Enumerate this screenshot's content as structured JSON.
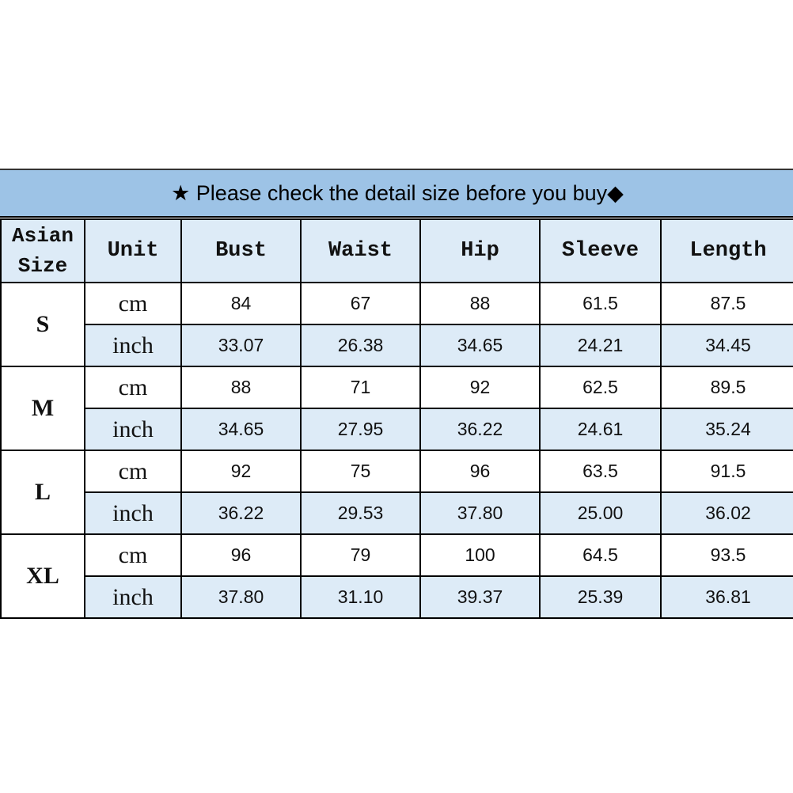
{
  "title": "★ Please check the detail size before you buy◆",
  "colors": {
    "title_bg": "#9dc3e6",
    "header_bg": "#ddebf7",
    "inch_row_bg": "#ddebf7"
  },
  "headers": [
    "Asian Size",
    "Unit",
    "Bust",
    "Waist",
    "Hip",
    "Sleeve",
    "Length"
  ],
  "rows": [
    {
      "size": "S",
      "cm": [
        "84",
        "67",
        "88",
        "61.5",
        "87.5"
      ],
      "inch": [
        "33.07",
        "26.38",
        "34.65",
        "24.21",
        "34.45"
      ]
    },
    {
      "size": "M",
      "cm": [
        "88",
        "71",
        "92",
        "62.5",
        "89.5"
      ],
      "inch": [
        "34.65",
        "27.95",
        "36.22",
        "24.61",
        "35.24"
      ]
    },
    {
      "size": "L",
      "cm": [
        "92",
        "75",
        "96",
        "63.5",
        "91.5"
      ],
      "inch": [
        "36.22",
        "29.53",
        "37.80",
        "25.00",
        "36.02"
      ]
    },
    {
      "size": "XL",
      "cm": [
        "96",
        "79",
        "100",
        "64.5",
        "93.5"
      ],
      "inch": [
        "37.80",
        "31.10",
        "39.37",
        "25.39",
        "36.81"
      ]
    }
  ],
  "units": {
    "cm": "cm",
    "inch": "inch"
  }
}
